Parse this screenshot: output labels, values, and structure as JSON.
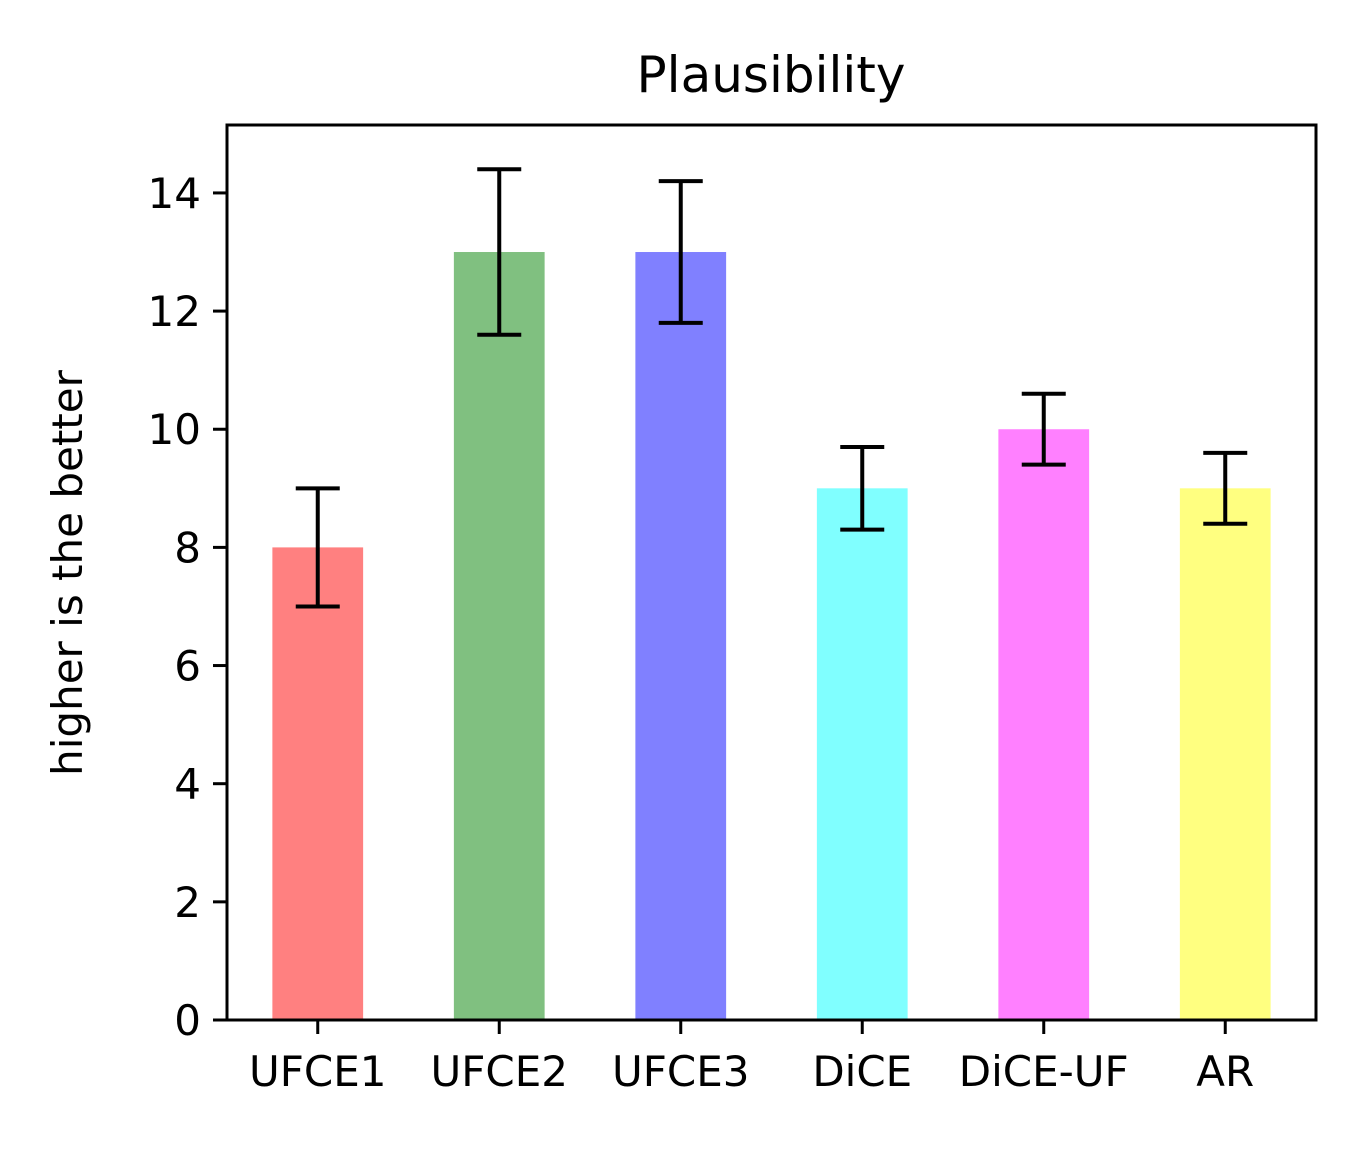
{
  "chart_data": {
    "type": "bar",
    "title": "Plausibility",
    "xlabel": "",
    "ylabel": "higher is the better",
    "categories": [
      "UFCE1",
      "UFCE2",
      "UFCE3",
      "DiCE",
      "DiCE-UF",
      "AR"
    ],
    "values": [
      8,
      13,
      13,
      9,
      10,
      9
    ],
    "error_bars": [
      {
        "low": 7.0,
        "high": 9.0
      },
      {
        "low": 11.6,
        "high": 14.4
      },
      {
        "low": 11.8,
        "high": 14.2
      },
      {
        "low": 8.3,
        "high": 9.7
      },
      {
        "low": 9.4,
        "high": 10.6
      },
      {
        "low": 8.4,
        "high": 9.6
      }
    ],
    "colors": [
      "#ff8080",
      "#80c080",
      "#8080ff",
      "#80ffff",
      "#ff80ff",
      "#ffff80"
    ],
    "ylim": [
      0,
      15.15
    ],
    "yticks": [
      0,
      2,
      4,
      6,
      8,
      10,
      12,
      14
    ],
    "ytick_labels": [
      "0",
      "2",
      "4",
      "6",
      "8",
      "10",
      "12",
      "14"
    ],
    "grid": false,
    "legend": "none"
  }
}
